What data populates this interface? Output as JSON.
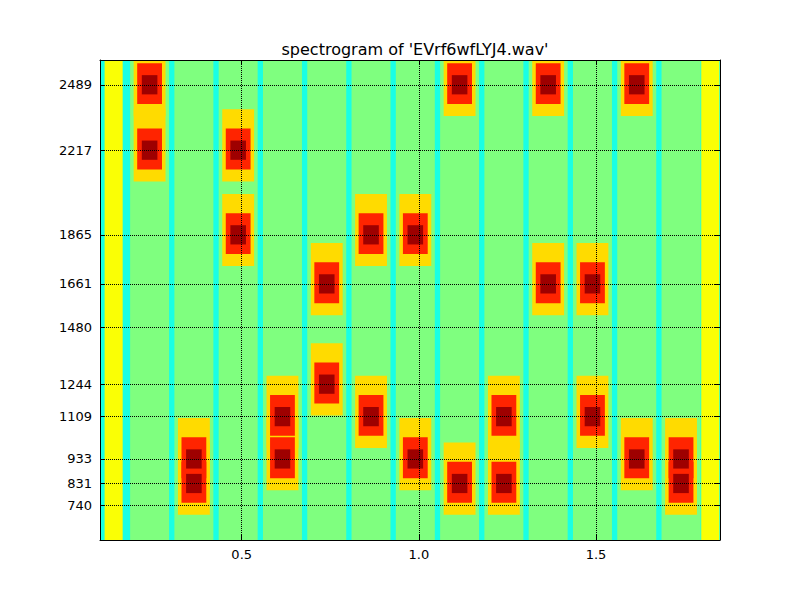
{
  "chart_data": {
    "type": "heatmap",
    "title": "spectrogram of 'EVrf6wfLYJ4.wav'",
    "xlim": [
      0.1,
      1.85
    ],
    "ylim": [
      596,
      2592
    ],
    "xticks": [
      0.5,
      {
        "value": 1,
        "label": "1.0"
      },
      1.5
    ],
    "yticks": [
      740,
      831,
      933,
      1109,
      1244,
      1480,
      1661,
      1865,
      2217,
      2489
    ],
    "grid": true,
    "zlim": [
      0,
      1
    ],
    "cells": [
      [
        0.1,
        1.85,
        596,
        2592,
        0.4
      ],
      [
        0.113,
        0.164,
        596,
        2592,
        0.62
      ],
      [
        1.797,
        1.848,
        596,
        2592,
        0.62
      ],
      [
        0.185,
        0.295,
        596,
        2592,
        0.5
      ],
      [
        0.31,
        0.42,
        596,
        2592,
        0.5
      ],
      [
        0.435,
        0.545,
        596,
        2592,
        0.5
      ],
      [
        0.56,
        0.67,
        596,
        2592,
        0.5
      ],
      [
        0.685,
        0.795,
        596,
        2592,
        0.5
      ],
      [
        0.81,
        0.92,
        596,
        2592,
        0.5
      ],
      [
        0.935,
        1.045,
        596,
        2592,
        0.5
      ],
      [
        1.06,
        1.17,
        596,
        2592,
        0.5
      ],
      [
        1.185,
        1.295,
        596,
        2592,
        0.5
      ],
      [
        1.31,
        1.42,
        596,
        2592,
        0.5
      ],
      [
        1.435,
        1.545,
        596,
        2592,
        0.5
      ],
      [
        1.56,
        1.67,
        596,
        2592,
        0.5
      ],
      [
        1.685,
        1.795,
        596,
        2592,
        0.5
      ],
      [
        0.195,
        0.285,
        2359,
        2659,
        0.66
      ],
      [
        0.195,
        0.285,
        2087,
        2387,
        0.66
      ],
      [
        0.32,
        0.41,
        803,
        1103,
        0.66
      ],
      [
        0.32,
        0.41,
        701,
        1001,
        0.66
      ],
      [
        0.445,
        0.535,
        2087,
        2387,
        0.66
      ],
      [
        0.445,
        0.535,
        1735,
        2035,
        0.66
      ],
      [
        0.57,
        0.66,
        979,
        1279,
        0.66
      ],
      [
        0.57,
        0.66,
        803,
        1103,
        0.66
      ],
      [
        0.695,
        0.785,
        1531,
        1831,
        0.66
      ],
      [
        0.695,
        0.785,
        1114,
        1414,
        0.66
      ],
      [
        0.82,
        0.91,
        1735,
        2035,
        0.66
      ],
      [
        0.82,
        0.91,
        979,
        1279,
        0.66
      ],
      [
        0.945,
        1.035,
        1735,
        2035,
        0.66
      ],
      [
        0.945,
        1.035,
        803,
        1103,
        0.66
      ],
      [
        1.07,
        1.16,
        2359,
        2659,
        0.66
      ],
      [
        1.07,
        1.16,
        701,
        1001,
        0.66
      ],
      [
        1.195,
        1.285,
        979,
        1279,
        0.66
      ],
      [
        1.195,
        1.285,
        701,
        1001,
        0.66
      ],
      [
        1.32,
        1.41,
        2359,
        2659,
        0.66
      ],
      [
        1.32,
        1.41,
        1531,
        1831,
        0.66
      ],
      [
        1.445,
        1.535,
        1531,
        1831,
        0.66
      ],
      [
        1.445,
        1.535,
        979,
        1279,
        0.66
      ],
      [
        1.57,
        1.66,
        2359,
        2659,
        0.66
      ],
      [
        1.57,
        1.66,
        803,
        1103,
        0.66
      ],
      [
        1.695,
        1.785,
        803,
        1103,
        0.66
      ],
      [
        1.695,
        1.785,
        701,
        1001,
        0.66
      ],
      [
        0.205,
        0.275,
        2409,
        2579,
        0.84
      ],
      [
        0.205,
        0.275,
        2137,
        2307,
        0.84
      ],
      [
        0.33,
        0.4,
        853,
        1023,
        0.84
      ],
      [
        0.33,
        0.4,
        751,
        921,
        0.84
      ],
      [
        0.455,
        0.525,
        2137,
        2307,
        0.84
      ],
      [
        0.455,
        0.525,
        1785,
        1955,
        0.84
      ],
      [
        0.58,
        0.65,
        1029,
        1199,
        0.84
      ],
      [
        0.58,
        0.65,
        853,
        1023,
        0.84
      ],
      [
        0.705,
        0.775,
        1581,
        1751,
        0.84
      ],
      [
        0.705,
        0.775,
        1164,
        1334,
        0.84
      ],
      [
        0.83,
        0.9,
        1785,
        1955,
        0.84
      ],
      [
        0.83,
        0.9,
        1029,
        1199,
        0.84
      ],
      [
        0.955,
        1.025,
        1785,
        1955,
        0.84
      ],
      [
        0.955,
        1.025,
        853,
        1023,
        0.84
      ],
      [
        1.08,
        1.15,
        2409,
        2579,
        0.84
      ],
      [
        1.08,
        1.15,
        751,
        921,
        0.84
      ],
      [
        1.205,
        1.275,
        1029,
        1199,
        0.84
      ],
      [
        1.205,
        1.275,
        751,
        921,
        0.84
      ],
      [
        1.33,
        1.4,
        2409,
        2579,
        0.84
      ],
      [
        1.33,
        1.4,
        1581,
        1751,
        0.84
      ],
      [
        1.455,
        1.525,
        1581,
        1751,
        0.84
      ],
      [
        1.455,
        1.525,
        1029,
        1199,
        0.84
      ],
      [
        1.58,
        1.65,
        2409,
        2579,
        0.84
      ],
      [
        1.58,
        1.65,
        853,
        1023,
        0.84
      ],
      [
        1.705,
        1.775,
        853,
        1023,
        0.84
      ],
      [
        1.705,
        1.775,
        751,
        921,
        0.84
      ],
      [
        0.218,
        0.262,
        2449,
        2529,
        0.97
      ],
      [
        0.218,
        0.262,
        2177,
        2257,
        0.97
      ],
      [
        0.343,
        0.387,
        893,
        973,
        0.97
      ],
      [
        0.343,
        0.387,
        791,
        871,
        0.97
      ],
      [
        0.468,
        0.512,
        2177,
        2257,
        0.97
      ],
      [
        0.468,
        0.512,
        1825,
        1905,
        0.97
      ],
      [
        0.593,
        0.637,
        1069,
        1149,
        0.97
      ],
      [
        0.593,
        0.637,
        893,
        973,
        0.97
      ],
      [
        0.718,
        0.762,
        1621,
        1701,
        0.97
      ],
      [
        0.718,
        0.762,
        1204,
        1284,
        0.97
      ],
      [
        0.843,
        0.887,
        1825,
        1905,
        0.97
      ],
      [
        0.843,
        0.887,
        1069,
        1149,
        0.97
      ],
      [
        0.968,
        1.012,
        1825,
        1905,
        0.97
      ],
      [
        0.968,
        1.012,
        893,
        973,
        0.97
      ],
      [
        1.093,
        1.137,
        2449,
        2529,
        0.97
      ],
      [
        1.093,
        1.137,
        791,
        871,
        0.97
      ],
      [
        1.218,
        1.262,
        1069,
        1149,
        0.97
      ],
      [
        1.218,
        1.262,
        791,
        871,
        0.97
      ],
      [
        1.343,
        1.387,
        2449,
        2529,
        0.97
      ],
      [
        1.343,
        1.387,
        1621,
        1701,
        0.97
      ],
      [
        1.468,
        1.512,
        1621,
        1701,
        0.97
      ],
      [
        1.468,
        1.512,
        1069,
        1149,
        0.97
      ],
      [
        1.593,
        1.637,
        2449,
        2529,
        0.97
      ],
      [
        1.593,
        1.637,
        893,
        973,
        0.97
      ],
      [
        1.718,
        1.762,
        893,
        973,
        0.97
      ],
      [
        1.718,
        1.762,
        791,
        871,
        0.97
      ]
    ]
  }
}
